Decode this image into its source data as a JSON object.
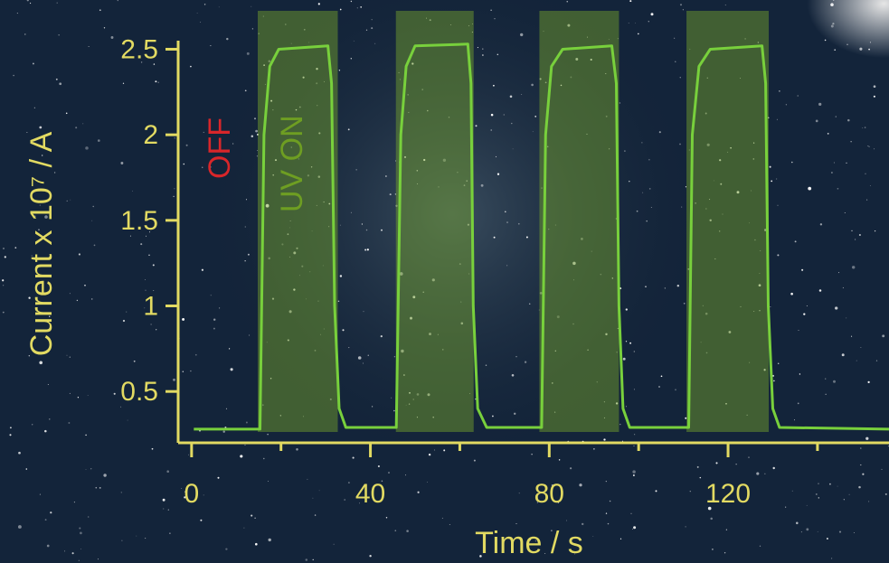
{
  "chart_data": {
    "type": "line",
    "x_label": "Time / s",
    "y_label": "Current x 10⁷ / A",
    "xlim": [
      -3,
      156
    ],
    "ylim": [
      0.2,
      2.55
    ],
    "xticks": [
      0,
      40,
      80,
      120
    ],
    "xminorticks": [
      20,
      60,
      100,
      140
    ],
    "yticks": [
      0.5,
      1.0,
      1.5,
      2.0,
      2.5
    ],
    "axis_color": "#e2da62",
    "shade_color": "#7aa82c",
    "shaded_regions": [
      [
        14.8,
        32.7
      ],
      [
        45.7,
        63.1
      ],
      [
        77.8,
        95.6
      ],
      [
        110.7,
        129.1
      ]
    ],
    "annotations": [
      {
        "text": "OFF",
        "color": "#d8262a"
      },
      {
        "text": "UV ON",
        "color": "#6e9e22"
      }
    ],
    "x": [
      0.5,
      15.3,
      16.2,
      17.5,
      19.5,
      30.5,
      31.3,
      32.0,
      33.0,
      34.5,
      45.8,
      46.8,
      48.0,
      50.0,
      61.8,
      62.5,
      63.0,
      64.0,
      66.0,
      78.3,
      79.2,
      80.5,
      83.0,
      94.0,
      95.0,
      95.6,
      96.5,
      98.0,
      111.2,
      112.0,
      113.5,
      116.0,
      127.6,
      128.4,
      129.0,
      130.0,
      131.5,
      156.0
    ],
    "series": [
      {
        "color": "#78d03c",
        "values": [
          0.28,
          0.28,
          2.0,
          2.4,
          2.5,
          2.52,
          2.3,
          1.0,
          0.4,
          0.29,
          0.29,
          2.0,
          2.4,
          2.52,
          2.53,
          2.3,
          1.0,
          0.4,
          0.29,
          0.29,
          2.0,
          2.4,
          2.5,
          2.52,
          2.3,
          1.0,
          0.4,
          0.29,
          0.29,
          2.0,
          2.4,
          2.5,
          2.52,
          2.3,
          1.0,
          0.4,
          0.29,
          0.28
        ]
      }
    ]
  }
}
